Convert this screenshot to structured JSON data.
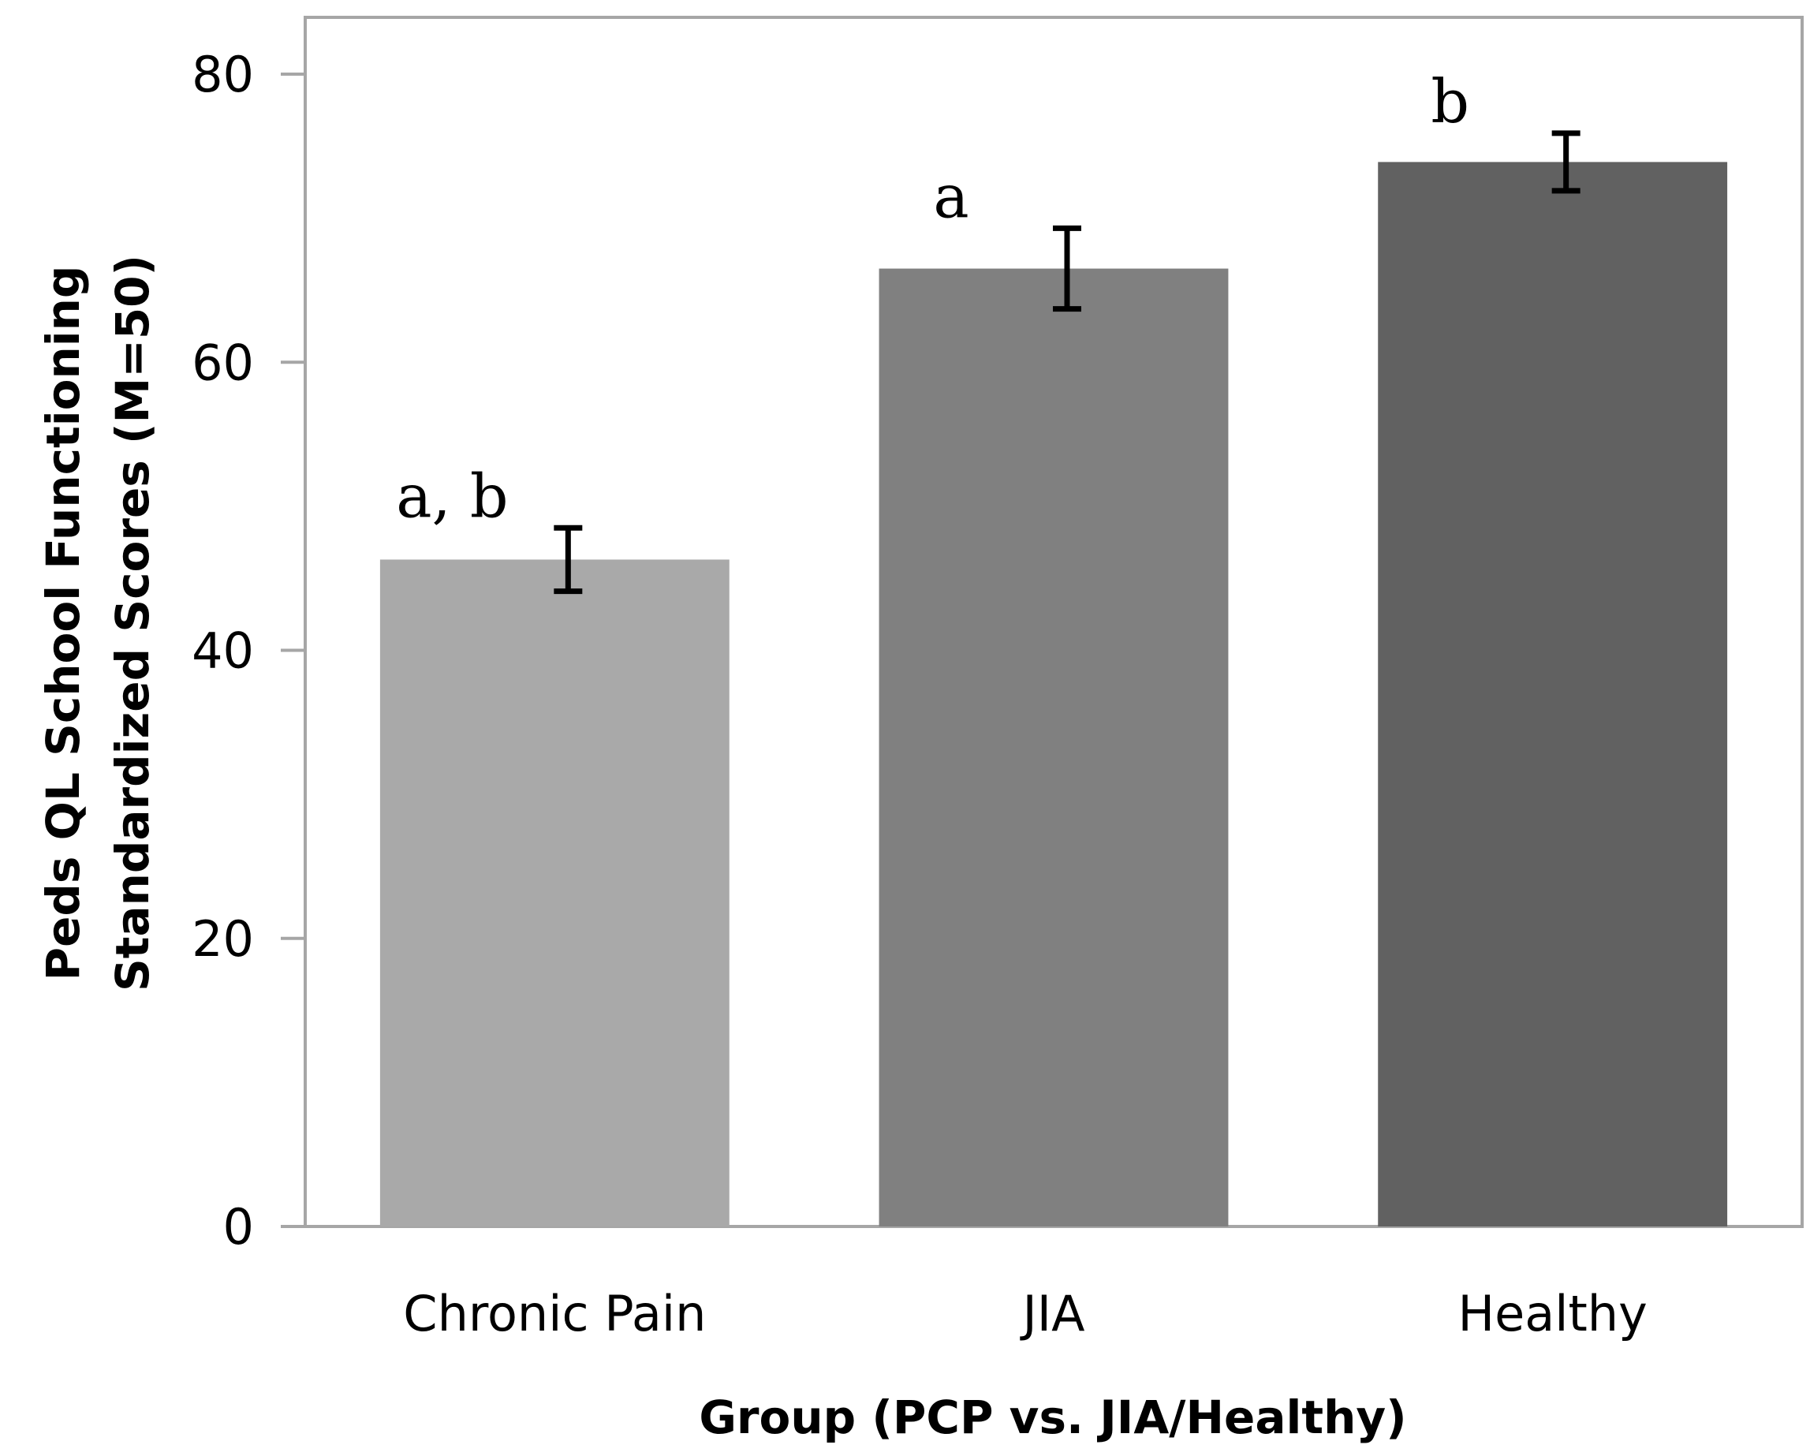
{
  "chart_data": {
    "type": "bar",
    "title": "",
    "categories": [
      "Chronic Pain",
      "JIA",
      "Healthy"
    ],
    "values": [
      46.3,
      66.5,
      73.9
    ],
    "error": [
      2.2,
      2.8,
      2.0
    ],
    "significance_labels": [
      "a, b",
      "a",
      "b"
    ],
    "colors": [
      "#a9a9a9",
      "#808080",
      "#616161"
    ],
    "xlabel": "Group (PCP vs. JIA/Healthy)",
    "ylabel_lines": [
      "Peds QL School Functioning",
      "Standardized Scores (M=50)"
    ],
    "ylim": [
      0,
      80
    ],
    "yticks": [
      0,
      20,
      40,
      60,
      80
    ],
    "grid": false
  }
}
